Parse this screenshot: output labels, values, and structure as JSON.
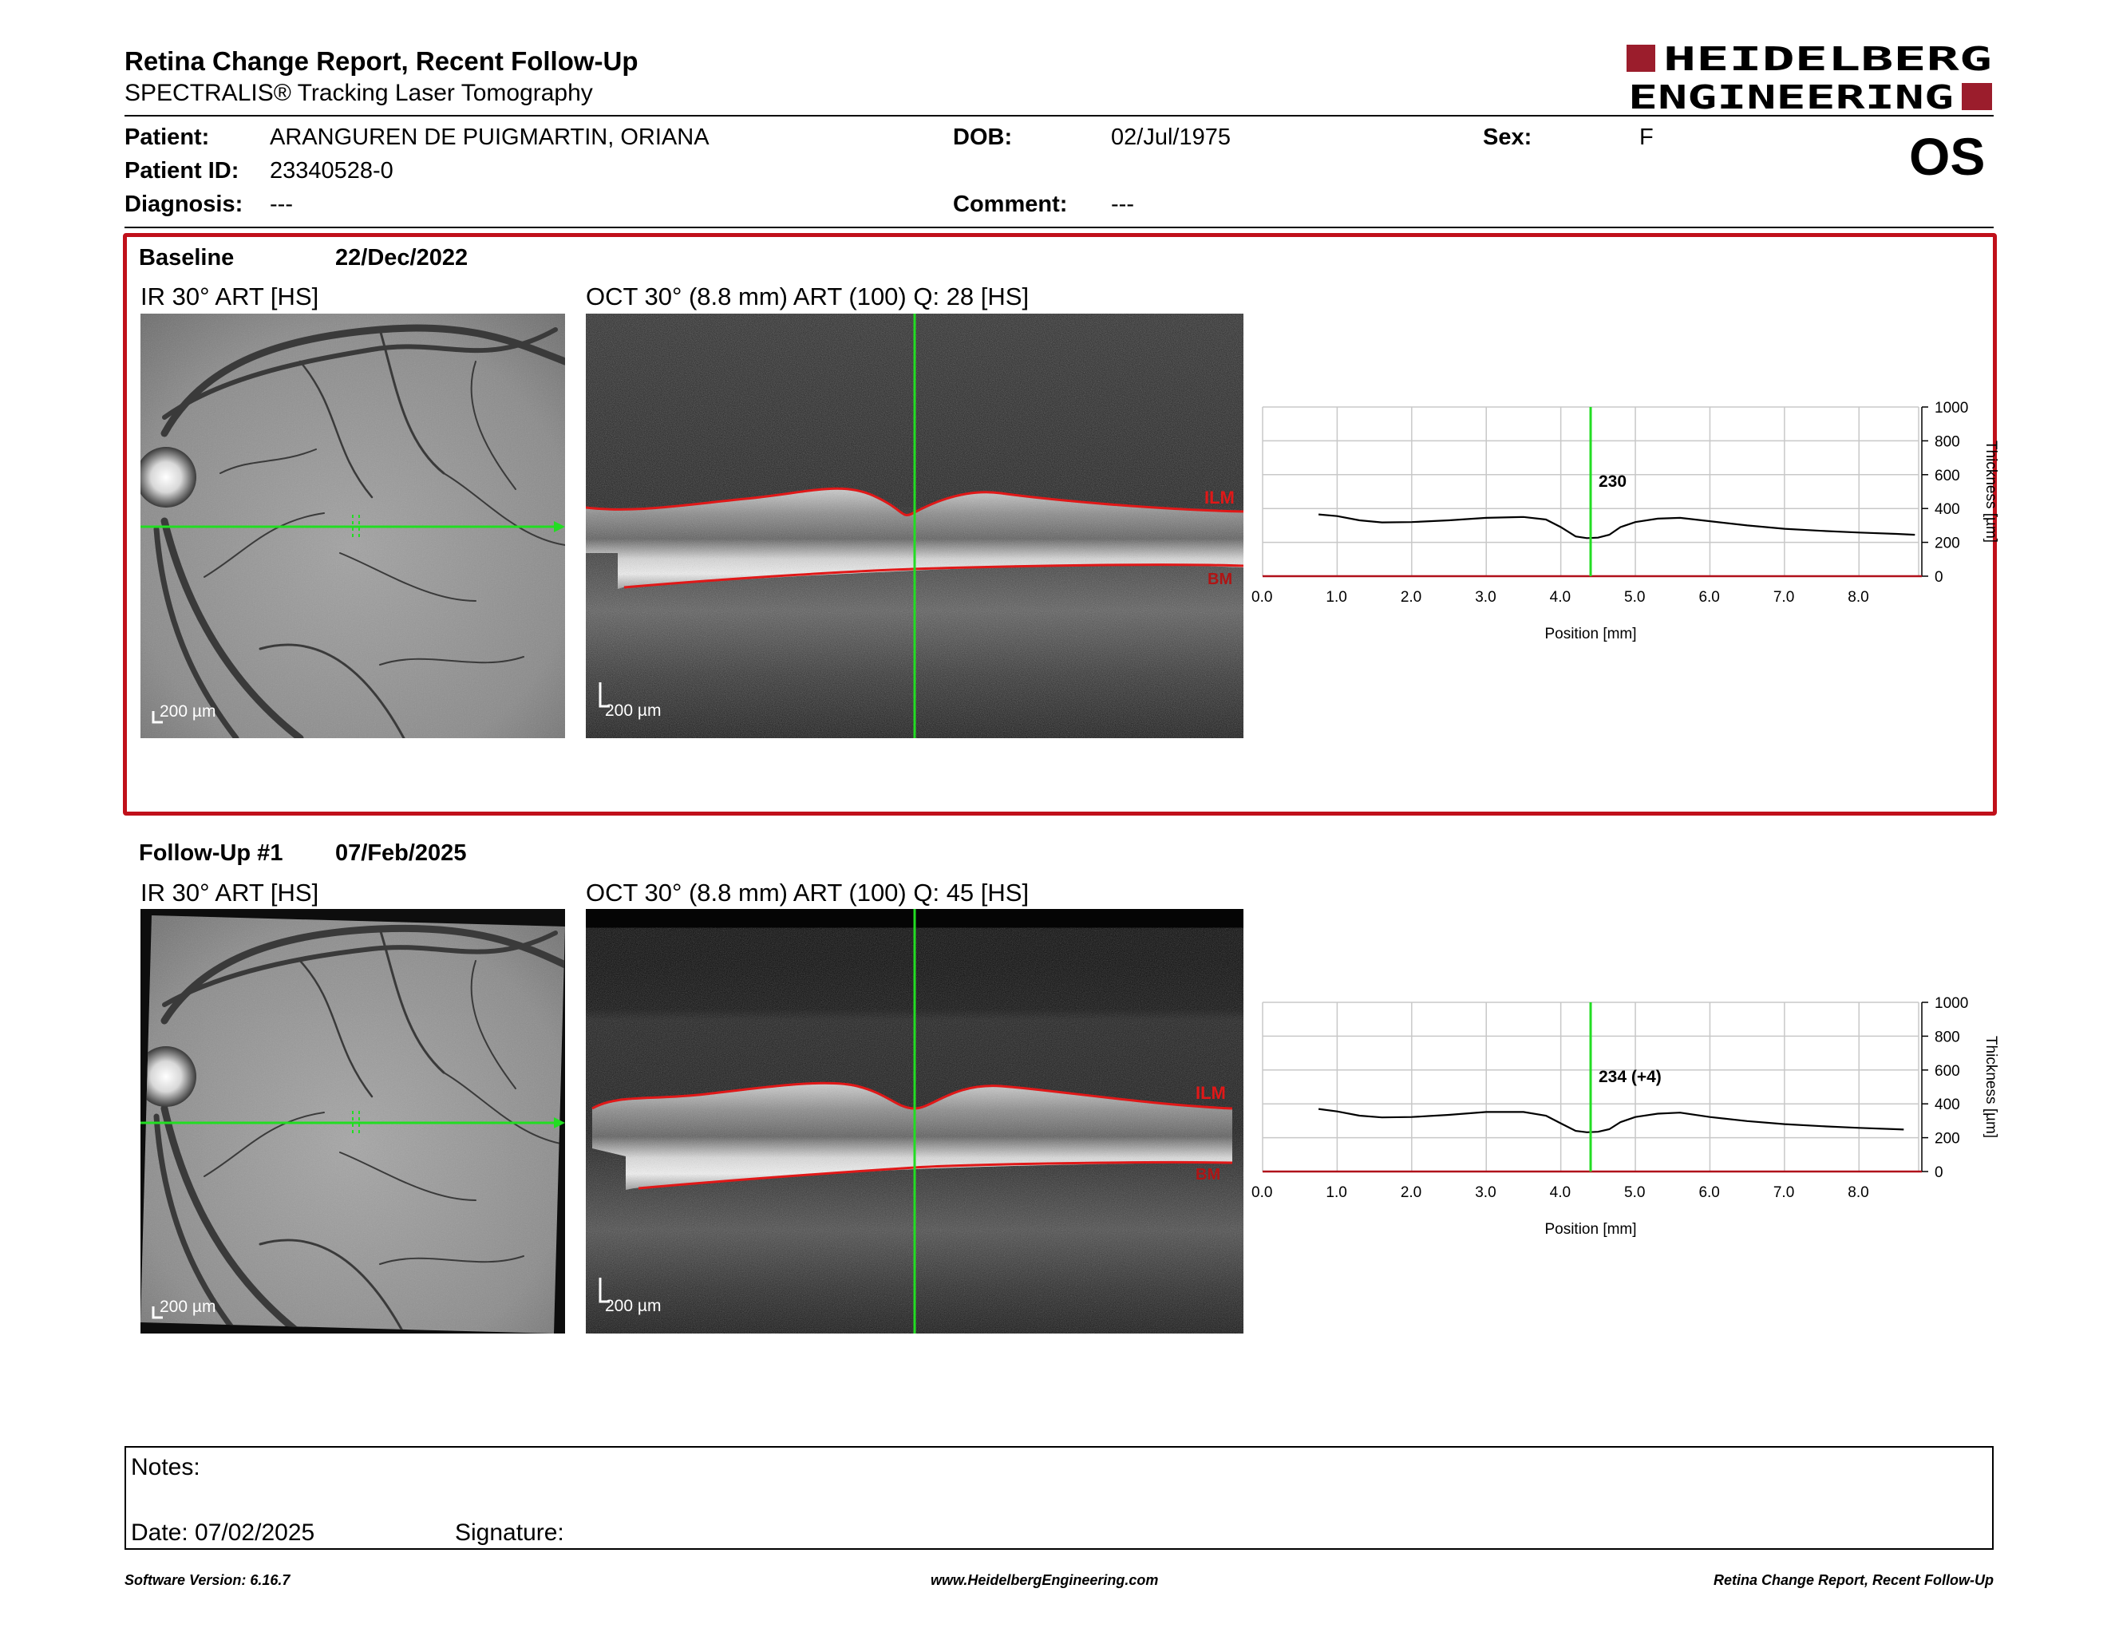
{
  "header": {
    "title": "Retina Change Report, Recent Follow-Up",
    "subtitle": "SPECTRALIS® Tracking Laser Tomography",
    "logo_line1": "HEIDELBERG",
    "logo_line2": "ENGINEERING",
    "eye": "OS"
  },
  "patient": {
    "patient_label": "Patient:",
    "patient_value": "ARANGUREN DE PUIGMARTIN, ORIANA",
    "dob_label": "DOB:",
    "dob_value": "02/Jul/1975",
    "sex_label": "Sex:",
    "sex_value": "F",
    "id_label": "Patient ID:",
    "id_value": "23340528-0",
    "diagnosis_label": "Diagnosis:",
    "diagnosis_value": "---",
    "comment_label": "Comment:",
    "comment_value": "---"
  },
  "baseline": {
    "label": "Baseline",
    "date": "22/Dec/2022",
    "ir_title": "IR 30° ART [HS]",
    "oct_title": "OCT 30° (8.8 mm) ART (100) Q: 28 [HS]",
    "ir_scale": "200 µm",
    "oct_scale": "200 µm",
    "ilm_label": "ILM",
    "bm_label": "BM",
    "marker_value": "230"
  },
  "followup": {
    "label": "Follow-Up #1",
    "date": "07/Feb/2025",
    "ir_title": "IR 30° ART [HS]",
    "oct_title": "OCT 30° (8.8 mm) ART (100) Q: 45 [HS]",
    "ir_scale": "200 µm",
    "oct_scale": "200 µm",
    "ilm_label": "ILM",
    "bm_label": "BM",
    "marker_value": "234 (+4)"
  },
  "chart_data": [
    {
      "type": "line",
      "xlabel": "Position [mm]",
      "ylabel": "Thickness [µm]",
      "xlim": [
        0.0,
        8.8
      ],
      "ylim": [
        0,
        1000
      ],
      "xticks": [
        "0.0",
        "1.0",
        "2.0",
        "3.0",
        "4.0",
        "5.0",
        "6.0",
        "7.0",
        "8.0"
      ],
      "yticks": [
        "0",
        "200",
        "400",
        "600",
        "800",
        "1000"
      ],
      "marker_x": 4.4,
      "marker_label": "230",
      "grid": true,
      "x": [
        0.75,
        1.0,
        1.3,
        1.6,
        2.0,
        2.5,
        3.0,
        3.5,
        3.8,
        4.0,
        4.2,
        4.35,
        4.5,
        4.65,
        4.8,
        5.0,
        5.3,
        5.6,
        6.0,
        6.5,
        7.0,
        7.5,
        8.0,
        8.5,
        8.75
      ],
      "y": [
        365,
        355,
        330,
        318,
        320,
        330,
        345,
        350,
        335,
        290,
        235,
        225,
        228,
        245,
        290,
        320,
        340,
        345,
        325,
        300,
        280,
        268,
        258,
        250,
        245
      ]
    },
    {
      "type": "line",
      "xlabel": "Position [mm]",
      "ylabel": "Thickness [µm]",
      "xlim": [
        0.0,
        8.8
      ],
      "ylim": [
        0,
        1000
      ],
      "xticks": [
        "0.0",
        "1.0",
        "2.0",
        "3.0",
        "4.0",
        "5.0",
        "6.0",
        "7.0",
        "8.0"
      ],
      "yticks": [
        "0",
        "200",
        "400",
        "600",
        "800",
        "1000"
      ],
      "marker_x": 4.4,
      "marker_label": "234 (+4)",
      "grid": true,
      "x": [
        0.75,
        1.0,
        1.3,
        1.6,
        2.0,
        2.5,
        3.0,
        3.5,
        3.8,
        4.0,
        4.2,
        4.35,
        4.5,
        4.65,
        4.8,
        5.0,
        5.3,
        5.6,
        6.0,
        6.5,
        7.0,
        7.5,
        8.0,
        8.5,
        8.6
      ],
      "y": [
        370,
        355,
        330,
        320,
        322,
        335,
        352,
        352,
        330,
        285,
        240,
        232,
        235,
        250,
        292,
        322,
        342,
        348,
        322,
        298,
        280,
        268,
        258,
        250,
        248
      ]
    }
  ],
  "notes": {
    "notes_label": "Notes:",
    "date_label": "Date: 07/02/2025",
    "signature_label": "Signature:"
  },
  "footer": {
    "software": "Software Version: 6.16.7",
    "website": "www.HeidelbergEngineering.com",
    "report_name": "Retina Change Report, Recent Follow-Up"
  },
  "colors": {
    "frame_red": "#c0101a",
    "logo_red": "#9b1d2c",
    "marker_green": "#22dd22",
    "seg_red": "#e01818"
  }
}
